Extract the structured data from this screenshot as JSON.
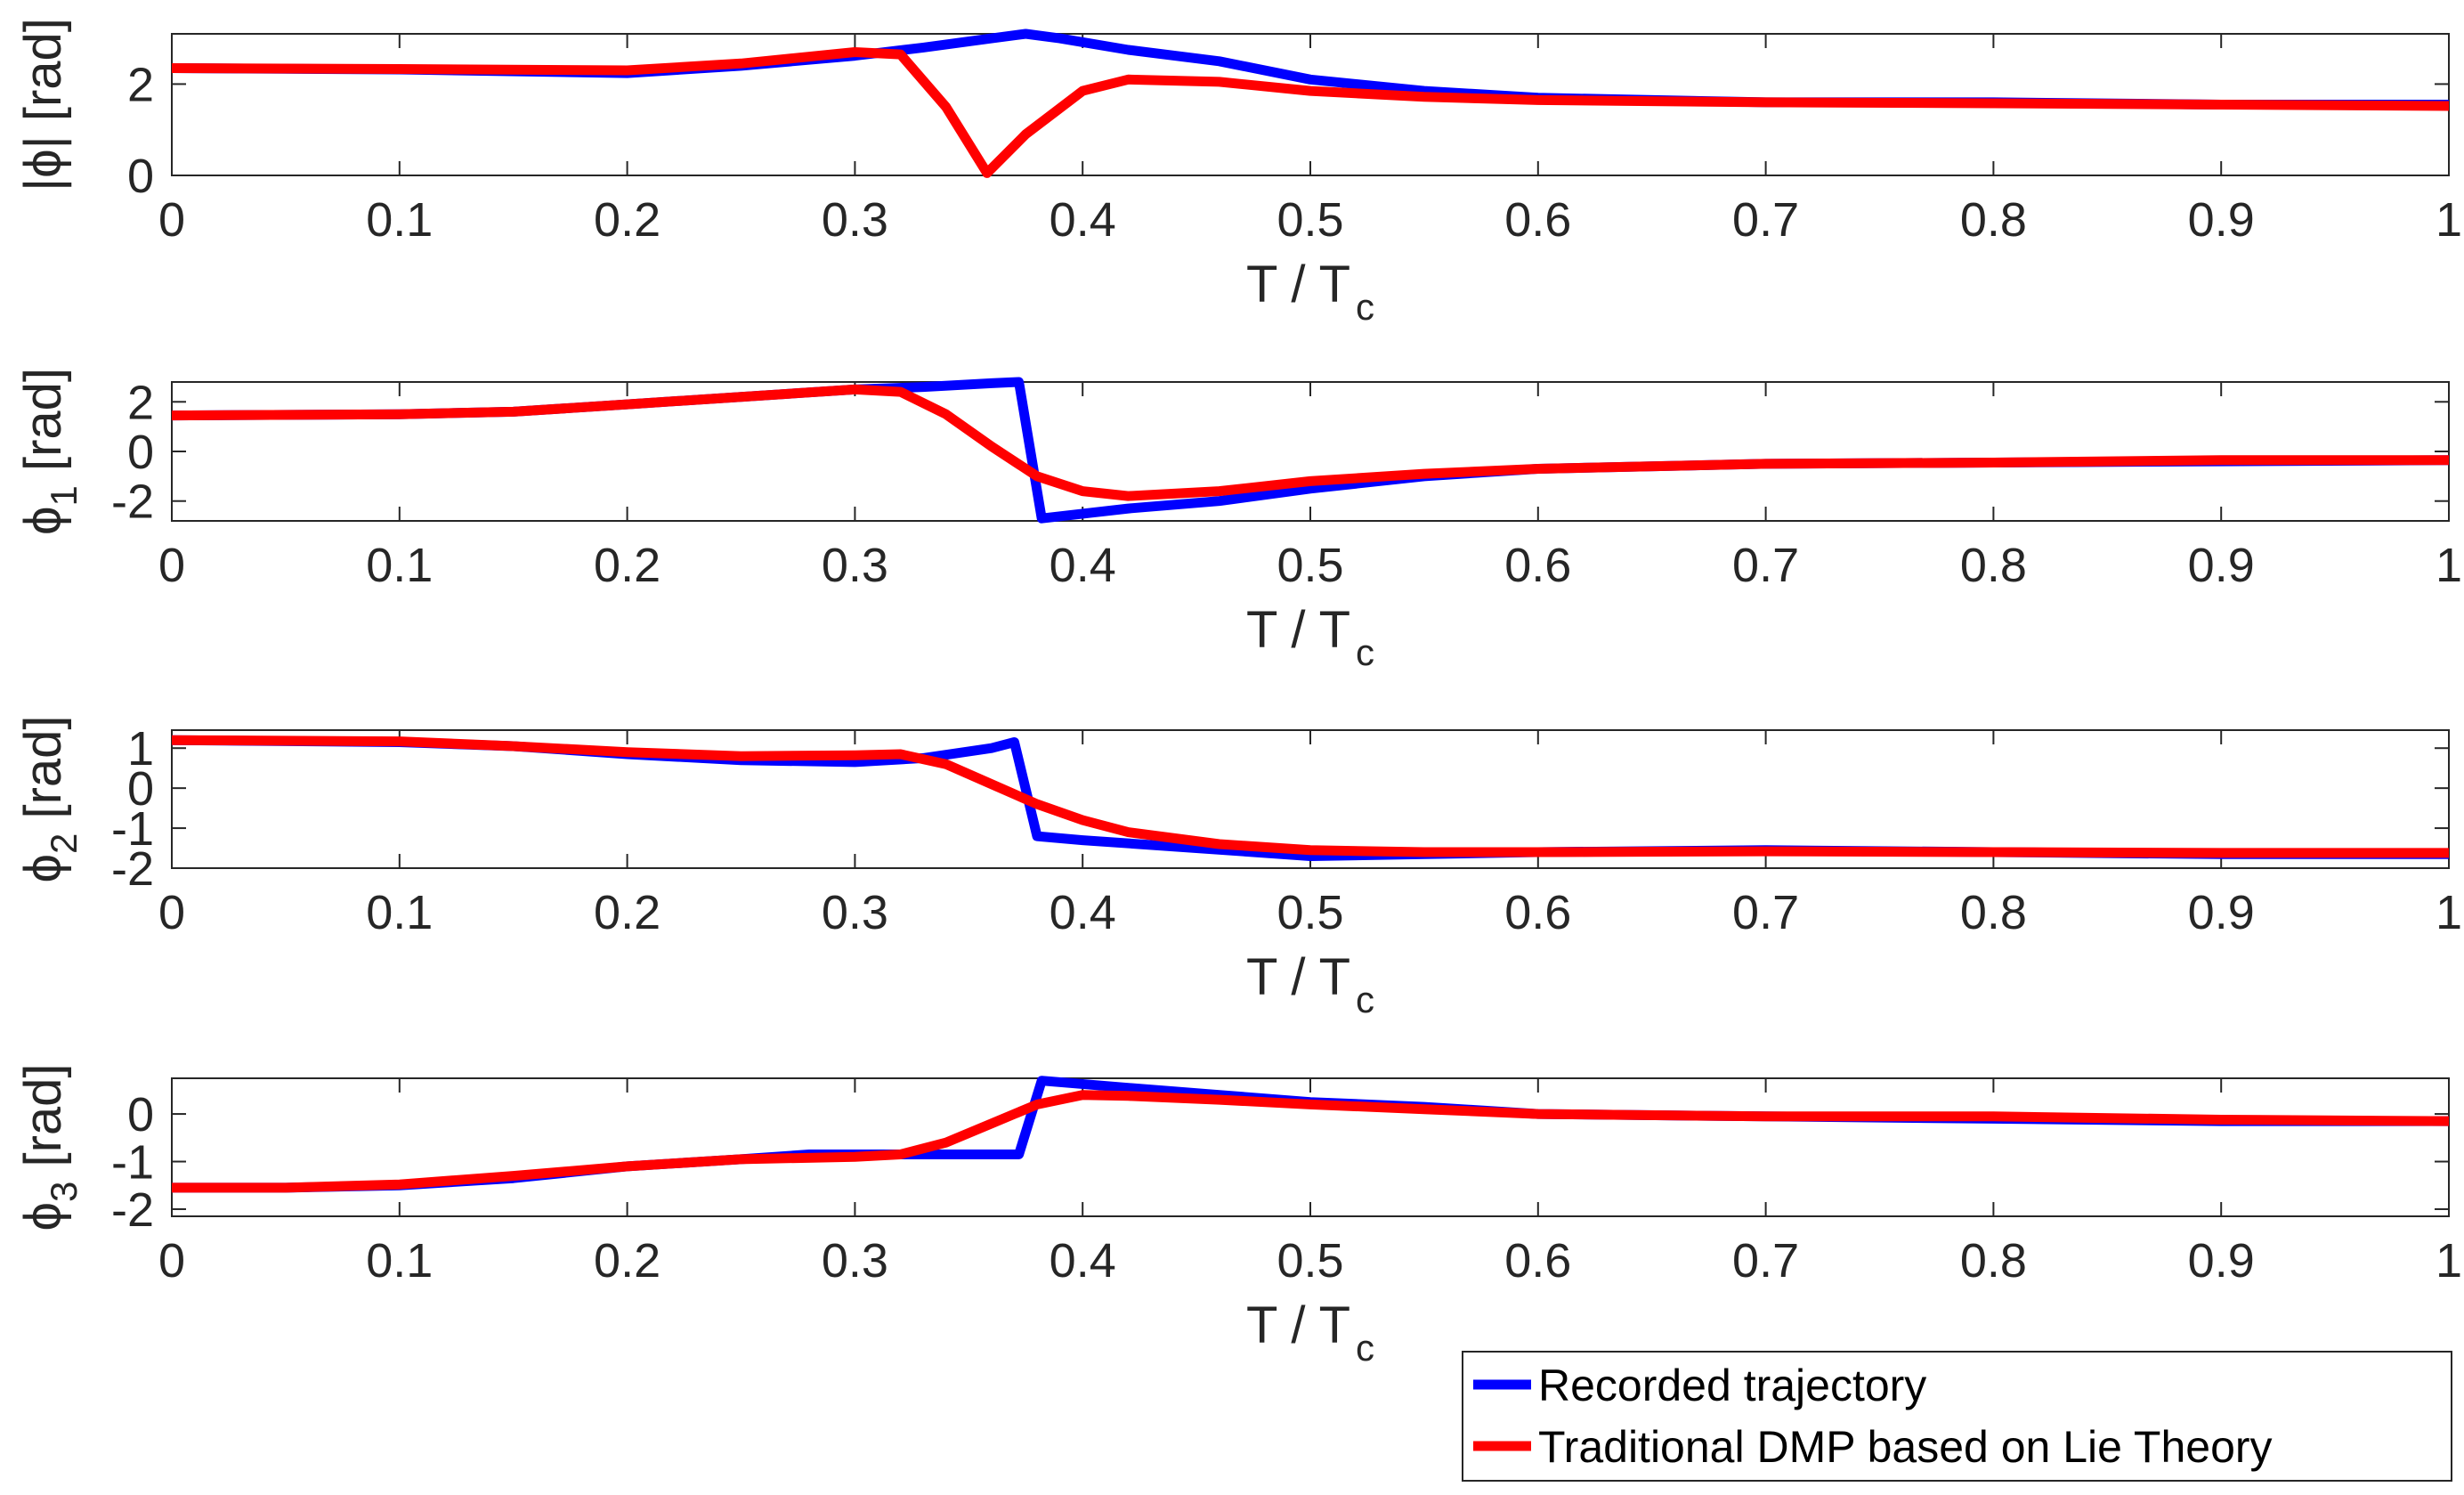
{
  "colors": {
    "recorded": "#0000ff",
    "dmp": "#ff0000",
    "axis": "#262626",
    "background": "#ffffff"
  },
  "legend": {
    "placement": "bottom-right",
    "entries": [
      {
        "label": "Recorded trajectory",
        "color": "#0000ff"
      },
      {
        "label": "Traditional DMP based on Lie Theory",
        "color": "#ff0000"
      }
    ]
  },
  "chart_data": [
    {
      "type": "line",
      "xlabel": {
        "main": "T / T",
        "sub": "c"
      },
      "ylabel": {
        "main": "|ϕ| [rad]",
        "sub": ""
      },
      "xlim": [
        0,
        1
      ],
      "ylim": [
        0,
        3.1
      ],
      "xticks": [
        0,
        0.1,
        0.2,
        0.3,
        0.4,
        0.5,
        0.6,
        0.7,
        0.8,
        0.9,
        1
      ],
      "xticklabels": [
        "0",
        "0.1",
        "0.2",
        "0.3",
        "0.4",
        "0.5",
        "0.6",
        "0.7",
        "0.8",
        "0.9",
        "1"
      ],
      "yticks": [
        0,
        2
      ],
      "yticklabels": [
        "0",
        "2"
      ],
      "series": [
        {
          "name": "Recorded trajectory",
          "color": "#0000ff",
          "x": [
            0,
            0.1,
            0.2,
            0.25,
            0.3,
            0.33,
            0.36,
            0.375,
            0.39,
            0.42,
            0.46,
            0.5,
            0.55,
            0.6,
            0.7,
            0.8,
            0.9,
            1.0
          ],
          "y": [
            2.35,
            2.32,
            2.24,
            2.4,
            2.62,
            2.8,
            3.0,
            3.1,
            3.0,
            2.75,
            2.5,
            2.1,
            1.85,
            1.7,
            1.6,
            1.6,
            1.55,
            1.55
          ]
        },
        {
          "name": "Traditional DMP based on Lie Theory",
          "color": "#ff0000",
          "x": [
            0,
            0.1,
            0.2,
            0.25,
            0.3,
            0.32,
            0.34,
            0.358,
            0.375,
            0.4,
            0.42,
            0.46,
            0.5,
            0.55,
            0.6,
            0.7,
            0.8,
            0.9,
            1.0
          ],
          "y": [
            2.35,
            2.33,
            2.3,
            2.45,
            2.7,
            2.65,
            1.5,
            0.05,
            0.9,
            1.85,
            2.1,
            2.05,
            1.85,
            1.72,
            1.65,
            1.6,
            1.58,
            1.55,
            1.52
          ]
        }
      ]
    },
    {
      "type": "line",
      "xlabel": {
        "main": "T / T",
        "sub": "c"
      },
      "ylabel": {
        "main": "ϕ",
        "sub": "1",
        "unit": " [rad]"
      },
      "xlim": [
        0,
        1
      ],
      "ylim": [
        -2.8,
        2.8
      ],
      "xticks": [
        0,
        0.1,
        0.2,
        0.3,
        0.4,
        0.5,
        0.6,
        0.7,
        0.8,
        0.9,
        1
      ],
      "xticklabels": [
        "0",
        "0.1",
        "0.2",
        "0.3",
        "0.4",
        "0.5",
        "0.6",
        "0.7",
        "0.8",
        "0.9",
        "1"
      ],
      "yticks": [
        -2,
        0,
        2
      ],
      "yticklabels": [
        "-2",
        "0",
        "2"
      ],
      "series": [
        {
          "name": "Recorded trajectory",
          "color": "#0000ff",
          "x": [
            0,
            0.1,
            0.15,
            0.2,
            0.25,
            0.3,
            0.33,
            0.36,
            0.372,
            0.382,
            0.42,
            0.46,
            0.5,
            0.55,
            0.6,
            0.7,
            0.8,
            0.9,
            1.0
          ],
          "y": [
            1.45,
            1.5,
            1.6,
            1.9,
            2.2,
            2.5,
            2.6,
            2.75,
            2.8,
            -2.7,
            -2.3,
            -2.0,
            -1.5,
            -1.0,
            -0.7,
            -0.5,
            -0.45,
            -0.4,
            -0.35
          ]
        },
        {
          "name": "Traditional DMP based on Lie Theory",
          "color": "#ff0000",
          "x": [
            0,
            0.1,
            0.15,
            0.2,
            0.25,
            0.3,
            0.32,
            0.34,
            0.36,
            0.38,
            0.4,
            0.42,
            0.46,
            0.5,
            0.55,
            0.6,
            0.7,
            0.8,
            0.9,
            1.0
          ],
          "y": [
            1.45,
            1.5,
            1.6,
            1.9,
            2.2,
            2.5,
            2.4,
            1.5,
            0.2,
            -1.0,
            -1.6,
            -1.8,
            -1.6,
            -1.2,
            -0.9,
            -0.7,
            -0.5,
            -0.45,
            -0.35,
            -0.35
          ]
        }
      ]
    },
    {
      "type": "line",
      "xlabel": {
        "main": "T / T",
        "sub": "c"
      },
      "ylabel": {
        "main": "ϕ",
        "sub": "2",
        "unit": " [rad]"
      },
      "xlim": [
        0,
        1
      ],
      "ylim": [
        -2,
        1.45
      ],
      "xticks": [
        0,
        0.1,
        0.2,
        0.3,
        0.4,
        0.5,
        0.6,
        0.7,
        0.8,
        0.9,
        1
      ],
      "xticklabels": [
        "0",
        "0.1",
        "0.2",
        "0.3",
        "0.4",
        "0.5",
        "0.6",
        "0.7",
        "0.8",
        "0.9",
        "1"
      ],
      "yticks": [
        -2,
        -1,
        0,
        1
      ],
      "yticklabels": [
        "-2",
        "-1",
        "0",
        "1"
      ],
      "series": [
        {
          "name": "Recorded trajectory",
          "color": "#0000ff",
          "x": [
            0,
            0.1,
            0.15,
            0.2,
            0.25,
            0.3,
            0.33,
            0.36,
            0.37,
            0.38,
            0.4,
            0.45,
            0.5,
            0.55,
            0.6,
            0.7,
            0.8,
            0.9,
            1.0
          ],
          "y": [
            1.2,
            1.15,
            1.05,
            0.85,
            0.7,
            0.65,
            0.75,
            1.0,
            1.15,
            -1.2,
            -1.3,
            -1.5,
            -1.7,
            -1.65,
            -1.6,
            -1.55,
            -1.6,
            -1.65,
            -1.65
          ]
        },
        {
          "name": "Traditional DMP based on Lie Theory",
          "color": "#ff0000",
          "x": [
            0,
            0.1,
            0.15,
            0.2,
            0.25,
            0.3,
            0.32,
            0.34,
            0.36,
            0.38,
            0.4,
            0.42,
            0.46,
            0.5,
            0.55,
            0.6,
            0.7,
            0.8,
            0.9,
            1.0
          ],
          "y": [
            1.2,
            1.17,
            1.05,
            0.9,
            0.8,
            0.82,
            0.85,
            0.6,
            0.1,
            -0.4,
            -0.8,
            -1.1,
            -1.4,
            -1.55,
            -1.6,
            -1.6,
            -1.58,
            -1.6,
            -1.62,
            -1.62
          ]
        }
      ]
    },
    {
      "type": "line",
      "xlabel": {
        "main": "T / T",
        "sub": "c"
      },
      "ylabel": {
        "main": "ϕ",
        "sub": "3",
        "unit": " [rad]"
      },
      "xlim": [
        0,
        1
      ],
      "ylim": [
        -2.15,
        0.75
      ],
      "xticks": [
        0,
        0.1,
        0.2,
        0.3,
        0.4,
        0.5,
        0.6,
        0.7,
        0.8,
        0.9,
        1
      ],
      "xticklabels": [
        "0",
        "0.1",
        "0.2",
        "0.3",
        "0.4",
        "0.5",
        "0.6",
        "0.7",
        "0.8",
        "0.9",
        "1"
      ],
      "yticks": [
        -2,
        -1,
        0
      ],
      "yticklabels": [
        "-2",
        "-1",
        "0"
      ],
      "series": [
        {
          "name": "Recorded trajectory",
          "color": "#0000ff",
          "x": [
            0,
            0.05,
            0.1,
            0.15,
            0.2,
            0.25,
            0.28,
            0.32,
            0.35,
            0.372,
            0.382,
            0.42,
            0.46,
            0.5,
            0.55,
            0.6,
            0.7,
            0.8,
            0.9,
            1.0
          ],
          "y": [
            -1.55,
            -1.55,
            -1.5,
            -1.35,
            -1.1,
            -0.95,
            -0.85,
            -0.85,
            -0.85,
            -0.85,
            0.7,
            0.55,
            0.4,
            0.25,
            0.15,
            0.0,
            -0.05,
            -0.1,
            -0.15,
            -0.15
          ]
        },
        {
          "name": "Traditional DMP based on Lie Theory",
          "color": "#ff0000",
          "x": [
            0,
            0.05,
            0.1,
            0.15,
            0.2,
            0.25,
            0.3,
            0.32,
            0.34,
            0.36,
            0.38,
            0.4,
            0.42,
            0.46,
            0.5,
            0.55,
            0.6,
            0.7,
            0.8,
            0.9,
            1.0
          ],
          "y": [
            -1.55,
            -1.55,
            -1.48,
            -1.3,
            -1.1,
            -0.95,
            -0.9,
            -0.85,
            -0.6,
            -0.2,
            0.2,
            0.4,
            0.38,
            0.3,
            0.2,
            0.1,
            0.0,
            -0.05,
            -0.05,
            -0.12,
            -0.15
          ]
        }
      ]
    }
  ]
}
